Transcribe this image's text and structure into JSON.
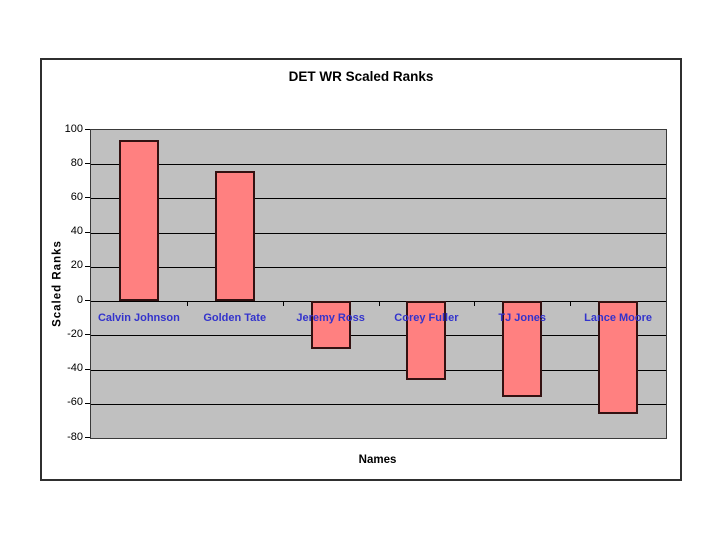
{
  "chart_data": {
    "type": "bar",
    "title": "DET WR Scaled Ranks",
    "xlabel": "Names",
    "ylabel": "Scaled Ranks",
    "categories": [
      "Calvin Johnson",
      "Golden Tate",
      "Jeremy Ross",
      "Corey Fuller",
      "TJ Jones",
      "Lance Moore"
    ],
    "values": [
      94,
      76,
      -28,
      -46,
      -56,
      -66
    ],
    "ylim": [
      -80,
      100
    ],
    "yticks": [
      100,
      80,
      60,
      40,
      20,
      0,
      -20,
      -40,
      -60,
      -80
    ],
    "grid": true,
    "legend": false,
    "colors": {
      "bar_fill": "#FF8080",
      "bar_border": "#331111",
      "plot_background": "#C0C0C0",
      "gridline": "#000000",
      "category_label": "#3333CC",
      "axis_text": "#000000",
      "chart_background": "#FFFFFF"
    }
  }
}
